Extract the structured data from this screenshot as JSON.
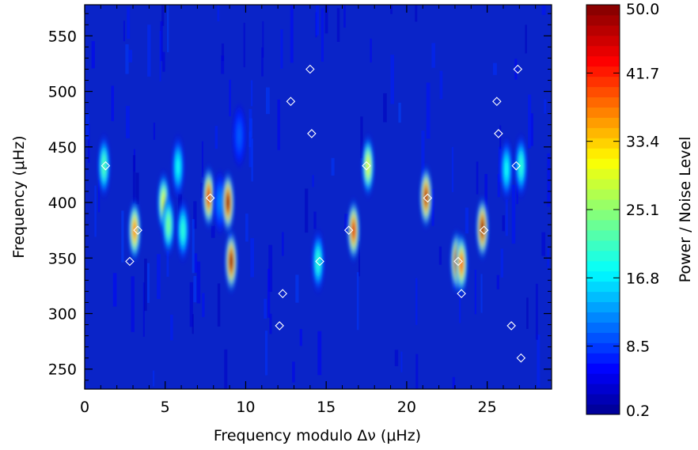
{
  "chart_data": {
    "type": "heatmap",
    "title": "",
    "xlabel": "Frequency modulo Δν (μHz)",
    "ylabel": "Frequency (μHz)",
    "colorbar_label": "Power / Noise Level",
    "xlim": [
      0,
      29
    ],
    "ylim": [
      232,
      578
    ],
    "x_ticks": [
      "0",
      "5",
      "10",
      "15",
      "20",
      "25"
    ],
    "x_tick_values": [
      0,
      5,
      10,
      15,
      20,
      25
    ],
    "y_ticks": [
      "250",
      "300",
      "350",
      "400",
      "450",
      "500",
      "550"
    ],
    "y_tick_values": [
      250,
      300,
      350,
      400,
      450,
      500,
      550
    ],
    "colorbar_range": [
      0.2,
      50.0
    ],
    "colorbar_ticks": [
      "0.2",
      "8.5",
      "16.8",
      "25.1",
      "33.4",
      "41.7",
      "50.0"
    ],
    "colorbar_tick_values": [
      0.2,
      8.5,
      16.8,
      25.1,
      33.4,
      41.7,
      50.0
    ],
    "colormap": "jet",
    "grid": false,
    "ridges": [
      {
        "x": 1.2,
        "y": 433,
        "peak": 22
      },
      {
        "x": 3.1,
        "y": 375,
        "peak": 38
      },
      {
        "x": 4.9,
        "y": 400,
        "peak": 30
      },
      {
        "x": 5.2,
        "y": 380,
        "peak": 24
      },
      {
        "x": 5.8,
        "y": 432,
        "peak": 18
      },
      {
        "x": 6.1,
        "y": 375,
        "peak": 20
      },
      {
        "x": 7.7,
        "y": 405,
        "peak": 45
      },
      {
        "x": 8.4,
        "y": 400,
        "peak": 12
      },
      {
        "x": 8.9,
        "y": 400,
        "peak": 50
      },
      {
        "x": 9.1,
        "y": 347,
        "peak": 50
      },
      {
        "x": 9.6,
        "y": 460,
        "peak": 10
      },
      {
        "x": 14.5,
        "y": 347,
        "peak": 20
      },
      {
        "x": 16.7,
        "y": 375,
        "peak": 45
      },
      {
        "x": 17.6,
        "y": 433,
        "peak": 30
      },
      {
        "x": 21.2,
        "y": 405,
        "peak": 48
      },
      {
        "x": 23.1,
        "y": 347,
        "peak": 45
      },
      {
        "x": 23.4,
        "y": 345,
        "peak": 40
      },
      {
        "x": 24.7,
        "y": 377,
        "peak": 50
      },
      {
        "x": 26.2,
        "y": 430,
        "peak": 18
      },
      {
        "x": 27.1,
        "y": 433,
        "peak": 20
      }
    ],
    "markers": [
      {
        "x": 1.3,
        "y": 433
      },
      {
        "x": 2.8,
        "y": 347
      },
      {
        "x": 3.3,
        "y": 375
      },
      {
        "x": 7.8,
        "y": 404
      },
      {
        "x": 12.1,
        "y": 289
      },
      {
        "x": 12.3,
        "y": 318
      },
      {
        "x": 12.8,
        "y": 491
      },
      {
        "x": 14.0,
        "y": 520
      },
      {
        "x": 14.1,
        "y": 462
      },
      {
        "x": 14.6,
        "y": 347
      },
      {
        "x": 16.4,
        "y": 375
      },
      {
        "x": 17.5,
        "y": 433
      },
      {
        "x": 21.3,
        "y": 404
      },
      {
        "x": 23.2,
        "y": 347
      },
      {
        "x": 23.4,
        "y": 318
      },
      {
        "x": 24.8,
        "y": 375
      },
      {
        "x": 25.6,
        "y": 491
      },
      {
        "x": 25.7,
        "y": 462
      },
      {
        "x": 26.5,
        "y": 289
      },
      {
        "x": 26.8,
        "y": 433
      },
      {
        "x": 26.9,
        "y": 520
      },
      {
        "x": 27.1,
        "y": 260
      }
    ]
  }
}
